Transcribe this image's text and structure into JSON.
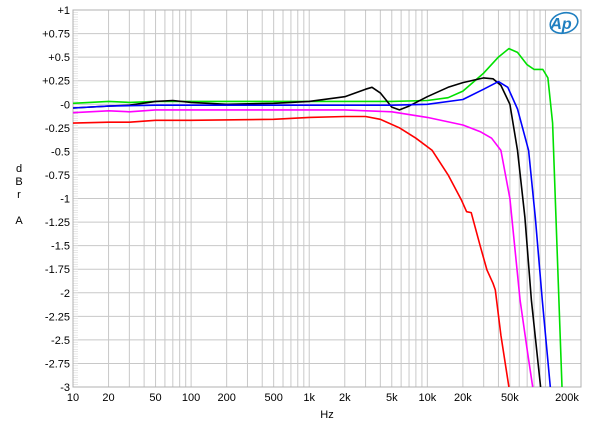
{
  "chart_data": {
    "type": "line",
    "title": "",
    "xlabel": "Hz",
    "ylabel": [
      "d",
      "B",
      "r",
      "",
      "A"
    ],
    "xscale": "log",
    "xlim": [
      10,
      200000
    ],
    "ylim": [
      -3,
      1
    ],
    "grid": true,
    "x_ticks": [
      {
        "v": 10,
        "label": "10"
      },
      {
        "v": 20,
        "label": "20"
      },
      {
        "v": 50,
        "label": "50"
      },
      {
        "v": 100,
        "label": "100"
      },
      {
        "v": 200,
        "label": "200"
      },
      {
        "v": 500,
        "label": "500"
      },
      {
        "v": 1000,
        "label": "1k"
      },
      {
        "v": 2000,
        "label": "2k"
      },
      {
        "v": 5000,
        "label": "5k"
      },
      {
        "v": 10000,
        "label": "10k"
      },
      {
        "v": 20000,
        "label": "20k"
      },
      {
        "v": 50000,
        "label": "50k"
      },
      {
        "v": 200000,
        "label": "200k"
      }
    ],
    "y_ticks": [
      {
        "v": 1,
        "label": "+1"
      },
      {
        "v": 0.75,
        "label": "+0.75"
      },
      {
        "v": 0.5,
        "label": "+0.5"
      },
      {
        "v": 0.25,
        "label": "+0.25"
      },
      {
        "v": 0,
        "label": "-0"
      },
      {
        "v": -0.25,
        "label": "-0.25"
      },
      {
        "v": -0.5,
        "label": "-0.5"
      },
      {
        "v": -0.75,
        "label": "-0.75"
      },
      {
        "v": -1,
        "label": "-1"
      },
      {
        "v": -1.25,
        "label": "-1.25"
      },
      {
        "v": -1.5,
        "label": "-1.5"
      },
      {
        "v": -1.75,
        "label": "-1.75"
      },
      {
        "v": -2,
        "label": "-2"
      },
      {
        "v": -2.25,
        "label": "-2.25"
      },
      {
        "v": -2.5,
        "label": "-2.5"
      },
      {
        "v": -2.75,
        "label": "-2.75"
      },
      {
        "v": -3,
        "label": "-3"
      }
    ],
    "series": [
      {
        "name": "green",
        "color": "#00e000",
        "x": [
          10,
          20,
          30,
          50,
          100,
          1000,
          5000,
          10000,
          15000,
          20000,
          30000,
          40000,
          49000,
          58000,
          70000,
          80000,
          95000,
          105000,
          115000,
          138000
        ],
        "y": [
          0.01,
          0.03,
          0.02,
          0.03,
          0.03,
          0.03,
          0.03,
          0.04,
          0.07,
          0.14,
          0.33,
          0.5,
          0.59,
          0.55,
          0.42,
          0.37,
          0.37,
          0.28,
          -0.2,
          -3
        ]
      },
      {
        "name": "black",
        "color": "#000000",
        "x": [
          10,
          20,
          30,
          50,
          70,
          100,
          200,
          500,
          1000,
          2000,
          3000,
          3400,
          4000,
          5000,
          5800,
          7000,
          10000,
          15000,
          20000,
          30000,
          36000,
          42000,
          50000,
          58000,
          67000,
          76000,
          91000
        ],
        "y": [
          -0.04,
          -0.02,
          -0.01,
          0.03,
          0.04,
          0.02,
          0.0,
          0.01,
          0.03,
          0.08,
          0.16,
          0.18,
          0.12,
          -0.03,
          -0.06,
          -0.02,
          0.08,
          0.18,
          0.23,
          0.28,
          0.27,
          0.2,
          0.0,
          -0.49,
          -1.2,
          -2.08,
          -3
        ]
      },
      {
        "name": "blue",
        "color": "#0000ff",
        "x": [
          10,
          20,
          50,
          100,
          1000,
          5000,
          10000,
          20000,
          30000,
          40000,
          48000,
          58000,
          72000,
          82000,
          94000,
          110000
        ],
        "y": [
          -0.04,
          -0.02,
          -0.01,
          -0.01,
          -0.01,
          -0.01,
          0.0,
          0.05,
          0.16,
          0.24,
          0.18,
          -0.05,
          -0.49,
          -1.2,
          -2.08,
          -3
        ]
      },
      {
        "name": "magenta",
        "color": "#ff00ff",
        "x": [
          10,
          20,
          30,
          50,
          100,
          1000,
          2000,
          5000,
          10000,
          20000,
          28000,
          35000,
          42000,
          50000,
          61000,
          70000,
          78000
        ],
        "y": [
          -0.09,
          -0.07,
          -0.08,
          -0.06,
          -0.06,
          -0.06,
          -0.06,
          -0.08,
          -0.14,
          -0.22,
          -0.29,
          -0.36,
          -0.49,
          -1.0,
          -2.08,
          -2.6,
          -3
        ]
      },
      {
        "name": "red",
        "color": "#ff0000",
        "x": [
          10,
          20,
          30,
          50,
          100,
          500,
          1000,
          2000,
          3000,
          4000,
          5800,
          8000,
          11000,
          15000,
          19500,
          21500,
          23500,
          28000,
          32000,
          36000,
          37600,
          42000,
          49000
        ],
        "y": [
          -0.2,
          -0.19,
          -0.19,
          -0.17,
          -0.17,
          -0.16,
          -0.14,
          -0.13,
          -0.13,
          -0.16,
          -0.25,
          -0.36,
          -0.49,
          -0.75,
          -1.02,
          -1.14,
          -1.15,
          -1.5,
          -1.76,
          -1.9,
          -1.97,
          -2.45,
          -3
        ]
      }
    ]
  },
  "logo": "Ap"
}
